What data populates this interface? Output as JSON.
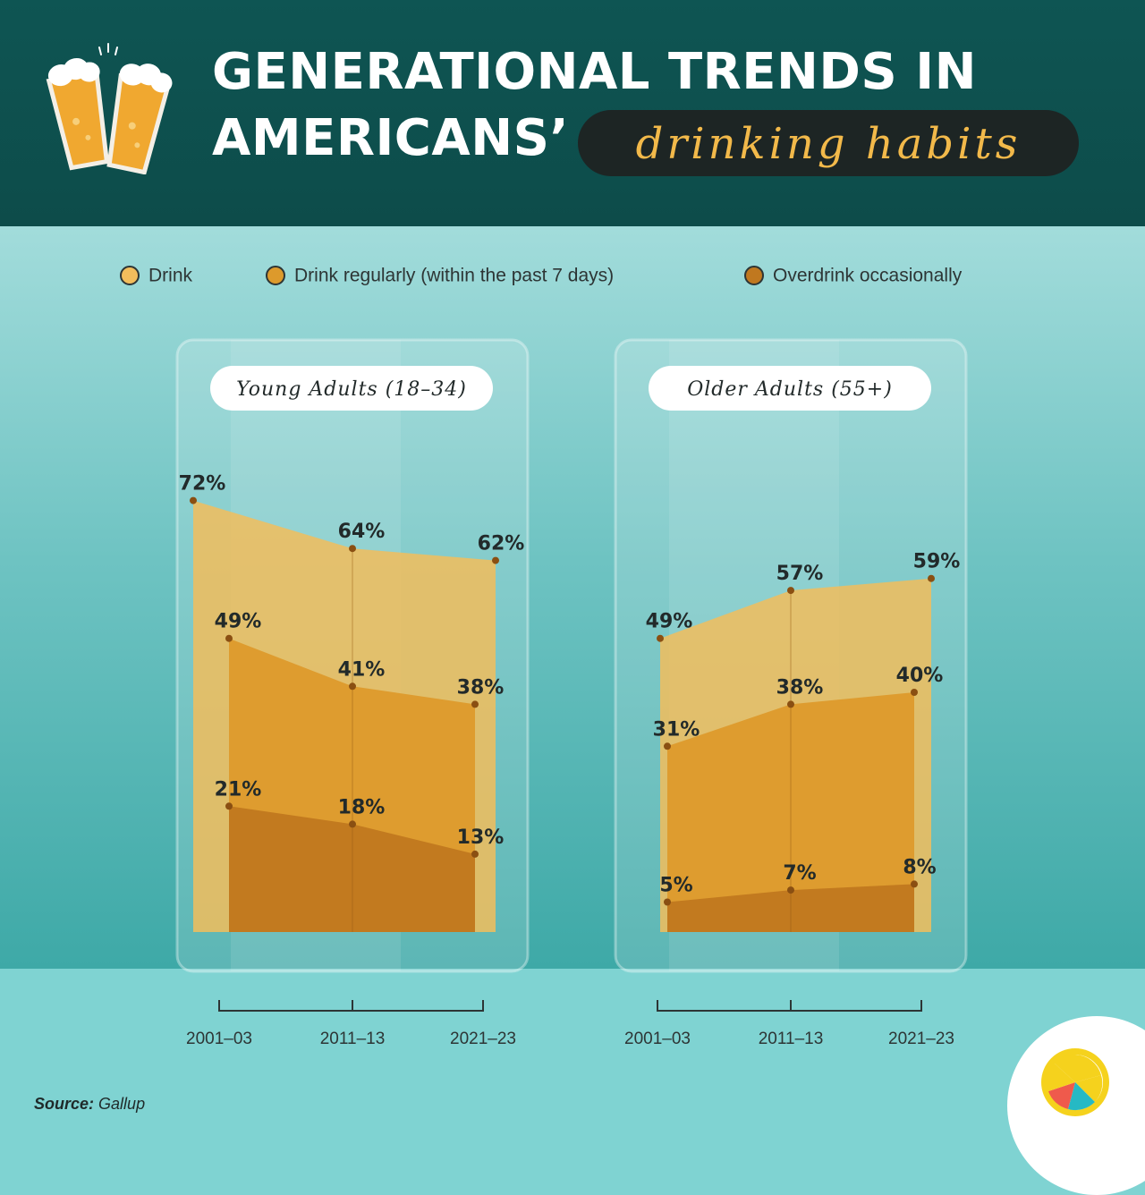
{
  "header": {
    "title_line1": "GENERATIONAL TRENDS IN",
    "title_line2": "AMERICANS’",
    "title_highlight": "drinking habits"
  },
  "legend": [
    {
      "label": "Drink",
      "color": "#f2bd5c"
    },
    {
      "label": "Drink regularly (within the past 7 days)",
      "color": "#dd9a2c"
    },
    {
      "label": "Overdrink occasionally",
      "color": "#c0781f"
    }
  ],
  "source": {
    "prefix": "Source:",
    "name": "Gallup"
  },
  "colors": {
    "drink": "#f2bd5c",
    "regular": "#dd9a2c",
    "overdrink": "#c0781f",
    "header_bg": "#0e5553",
    "highlight_text": "#f2b94a"
  },
  "chart_data": [
    {
      "type": "area",
      "title": "Young Adults (18–34)",
      "categories": [
        "2001–03",
        "2011–13",
        "2021–23"
      ],
      "unit": "%",
      "series": [
        {
          "name": "Drink",
          "values": [
            72,
            64,
            62
          ]
        },
        {
          "name": "Drink regularly (within the past 7 days)",
          "values": [
            49,
            41,
            38
          ]
        },
        {
          "name": "Overdrink occasionally",
          "values": [
            21,
            18,
            13
          ]
        }
      ]
    },
    {
      "type": "area",
      "title": "Older Adults (55+)",
      "categories": [
        "2001–03",
        "2011–13",
        "2021–23"
      ],
      "unit": "%",
      "series": [
        {
          "name": "Drink",
          "values": [
            49,
            57,
            59
          ]
        },
        {
          "name": "Drink regularly (within the past 7 days)",
          "values": [
            31,
            38,
            40
          ]
        },
        {
          "name": "Overdrink occasionally",
          "values": [
            5,
            7,
            8
          ]
        }
      ]
    }
  ]
}
